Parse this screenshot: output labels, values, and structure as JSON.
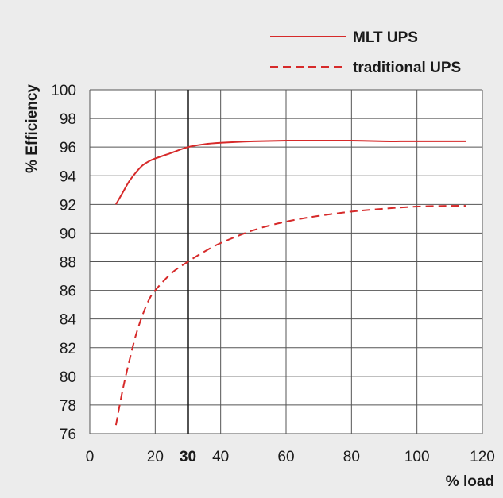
{
  "chart_data": {
    "type": "line",
    "title": "",
    "xlabel": "% load",
    "ylabel": "% Efficiency",
    "xlim": [
      0,
      120
    ],
    "ylim": [
      76,
      100
    ],
    "x_ticks": [
      0,
      20,
      40,
      60,
      80,
      100,
      120
    ],
    "y_ticks": [
      76,
      78,
      80,
      82,
      84,
      86,
      88,
      90,
      92,
      94,
      96,
      98,
      100
    ],
    "grid": true,
    "legend_position": "top-right",
    "highlight": {
      "x": 30,
      "label": "30",
      "color": "#1a1a1a"
    },
    "colors": {
      "grid": "#555555",
      "series": "#d62a2a",
      "background": "#ffffff"
    },
    "series": [
      {
        "name": "MLT UPS",
        "style": "solid",
        "x": [
          8,
          10,
          12,
          14,
          16,
          18,
          20,
          25,
          30,
          35,
          40,
          50,
          60,
          70,
          80,
          90,
          95,
          100,
          110,
          115
        ],
        "values": [
          92.0,
          92.8,
          93.6,
          94.2,
          94.7,
          95.0,
          95.2,
          95.6,
          96.0,
          96.2,
          96.3,
          96.4,
          96.45,
          96.45,
          96.45,
          96.4,
          96.4,
          96.4,
          96.4,
          96.4
        ]
      },
      {
        "name": "traditional UPS",
        "style": "dashed",
        "x": [
          8,
          10,
          12,
          14,
          16,
          18,
          20,
          25,
          30,
          35,
          40,
          50,
          60,
          70,
          80,
          90,
          100,
          110,
          115
        ],
        "values": [
          76.6,
          79.0,
          81.0,
          82.8,
          84.2,
          85.3,
          86.0,
          87.2,
          88.0,
          88.7,
          89.3,
          90.2,
          90.8,
          91.2,
          91.5,
          91.7,
          91.85,
          91.9,
          91.9
        ]
      }
    ]
  }
}
